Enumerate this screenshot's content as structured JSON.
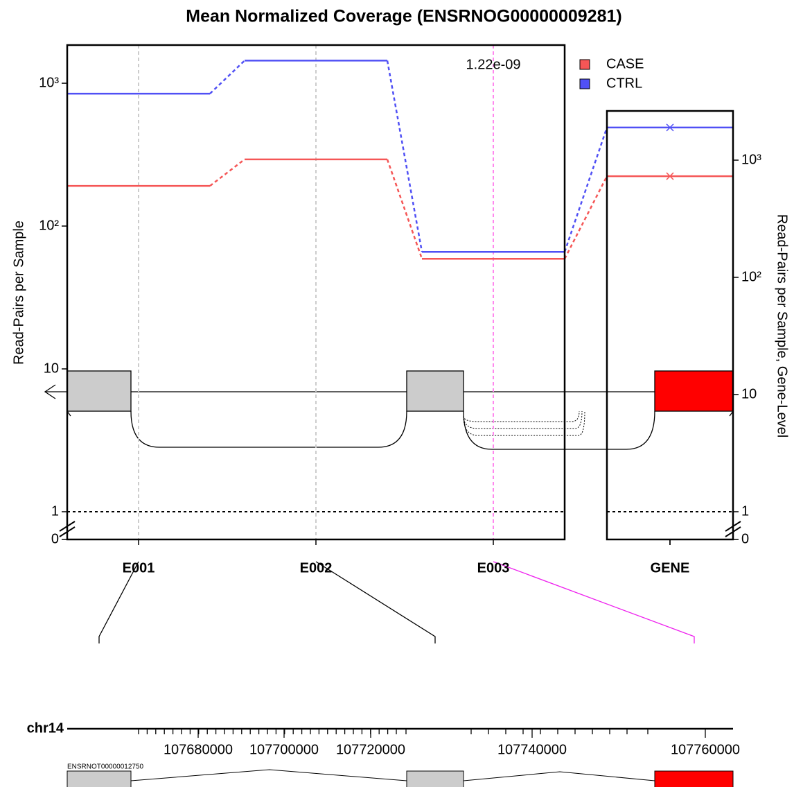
{
  "chart_data": {
    "type": "line",
    "title": "Mean Normalized Coverage (ENSRNOG00000009281)",
    "y_label": "Read-Pairs per Sample",
    "y2_label": "Read-Pairs per Sample, Gene-Level",
    "categories": [
      "E001",
      "E002",
      "E003",
      "GENE"
    ],
    "y2_category": "GENE",
    "series": [
      {
        "name": "CASE",
        "color": "#f55656",
        "values": [
          191,
          293,
          59,
          730
        ]
      },
      {
        "name": "CTRL",
        "color": "#5050f5",
        "values": [
          845,
          1440,
          66,
          1900
        ]
      }
    ],
    "log_scale": true,
    "ylim": [
      0,
      1850
    ],
    "yticks": [
      0,
      1,
      10,
      {
        "value": 100,
        "label": "10²"
      },
      {
        "value": 1000,
        "label": "10³"
      }
    ],
    "y2lim": [
      0,
      2630
    ],
    "y2ticks": [
      0,
      1,
      10,
      {
        "value": 100,
        "label": "10²"
      },
      {
        "value": 1000,
        "label": "10³"
      }
    ],
    "reference_line": 1,
    "annotations": [
      {
        "text": "1.22e-09",
        "category": "E003",
        "color": "#ff88ee"
      }
    ],
    "legend": "top-right",
    "gene_model": {
      "chromosome": "chr14",
      "transcript": "ENSRNOT00000012750",
      "ticks": [
        107680000,
        107700000,
        107720000,
        107740000,
        107760000
      ]
    }
  }
}
